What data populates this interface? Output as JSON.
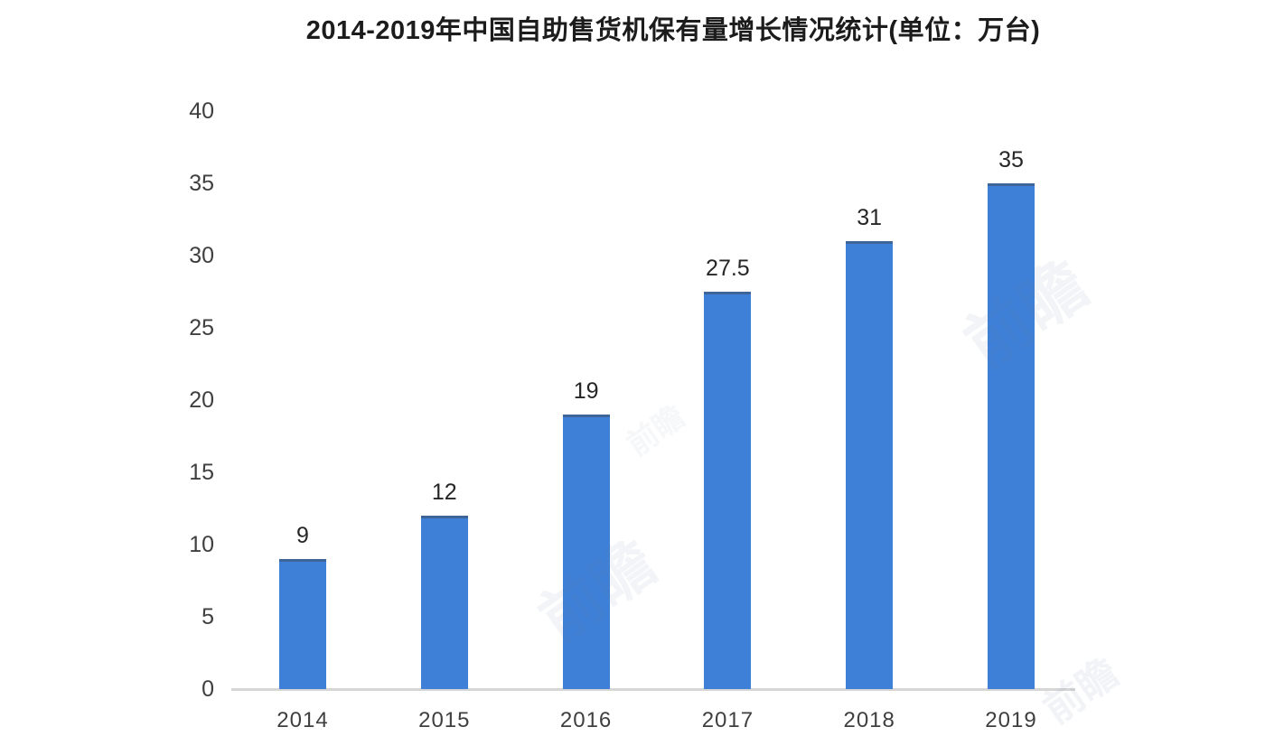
{
  "chart_data": {
    "type": "bar",
    "title": "2014-2019年中国自助售货机保有量增长情况统计(单位：万台)",
    "categories": [
      "2014",
      "2015",
      "2016",
      "2017",
      "2018",
      "2019"
    ],
    "values": [
      9,
      12,
      19,
      27.5,
      31,
      35
    ],
    "data_labels": [
      "9",
      "12",
      "19",
      "27.5",
      "31",
      "35"
    ],
    "y_ticks": [
      0,
      5,
      10,
      15,
      20,
      25,
      30,
      35,
      40
    ],
    "ylim": [
      0,
      40
    ],
    "xlabel": "",
    "ylabel": "",
    "grid": false,
    "legend_position": "none",
    "colors": {
      "bar": "#3E7FD8",
      "bar_top_edge": "rgba(62,80,100,0.55)",
      "axis_line": "#d6d6d6",
      "tick_text": "#3f3f3f",
      "value_text": "#262626",
      "title_text": "#1c1c1c",
      "background": "#ffffff"
    }
  },
  "watermark": {
    "text": "前瞻",
    "color": "#6e7fa0"
  }
}
